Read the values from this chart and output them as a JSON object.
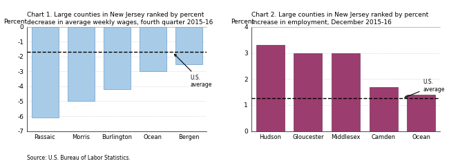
{
  "chart1": {
    "title": "Chart 1. Large counties in New Jersey ranked by percent\ndecrease in average weekly wages, fourth quarter 2015-16",
    "ylabel": "Percent",
    "categories": [
      "Passaic",
      "Morris",
      "Burlington",
      "Ocean",
      "Bergen"
    ],
    "values": [
      -6.1,
      -5.0,
      -4.2,
      -3.0,
      -2.5
    ],
    "us_average": -1.7,
    "ylim": [
      -7,
      0
    ],
    "yticks": [
      0,
      -1,
      -2,
      -3,
      -4,
      -5,
      -6,
      -7
    ],
    "bar_color": "#a8cce8",
    "us_avg_label": "U.S.\naverage",
    "source": "Source: U.S. Bureau of Labor Statistics."
  },
  "chart2": {
    "title": "Chart 2. Large counties in New Jersey ranked by percent\nincrease in employment, December 2015-16",
    "ylabel": "Percent",
    "categories": [
      "Hudson",
      "Gloucester",
      "Middlesex",
      "Camden",
      "Ocean"
    ],
    "values": [
      3.3,
      3.0,
      3.0,
      1.7,
      1.4
    ],
    "us_average": 1.25,
    "ylim": [
      0,
      4
    ],
    "yticks": [
      0,
      1,
      2,
      3,
      4
    ],
    "bar_color": "#9b3d6e",
    "us_avg_label": "U.S.\naverage"
  }
}
